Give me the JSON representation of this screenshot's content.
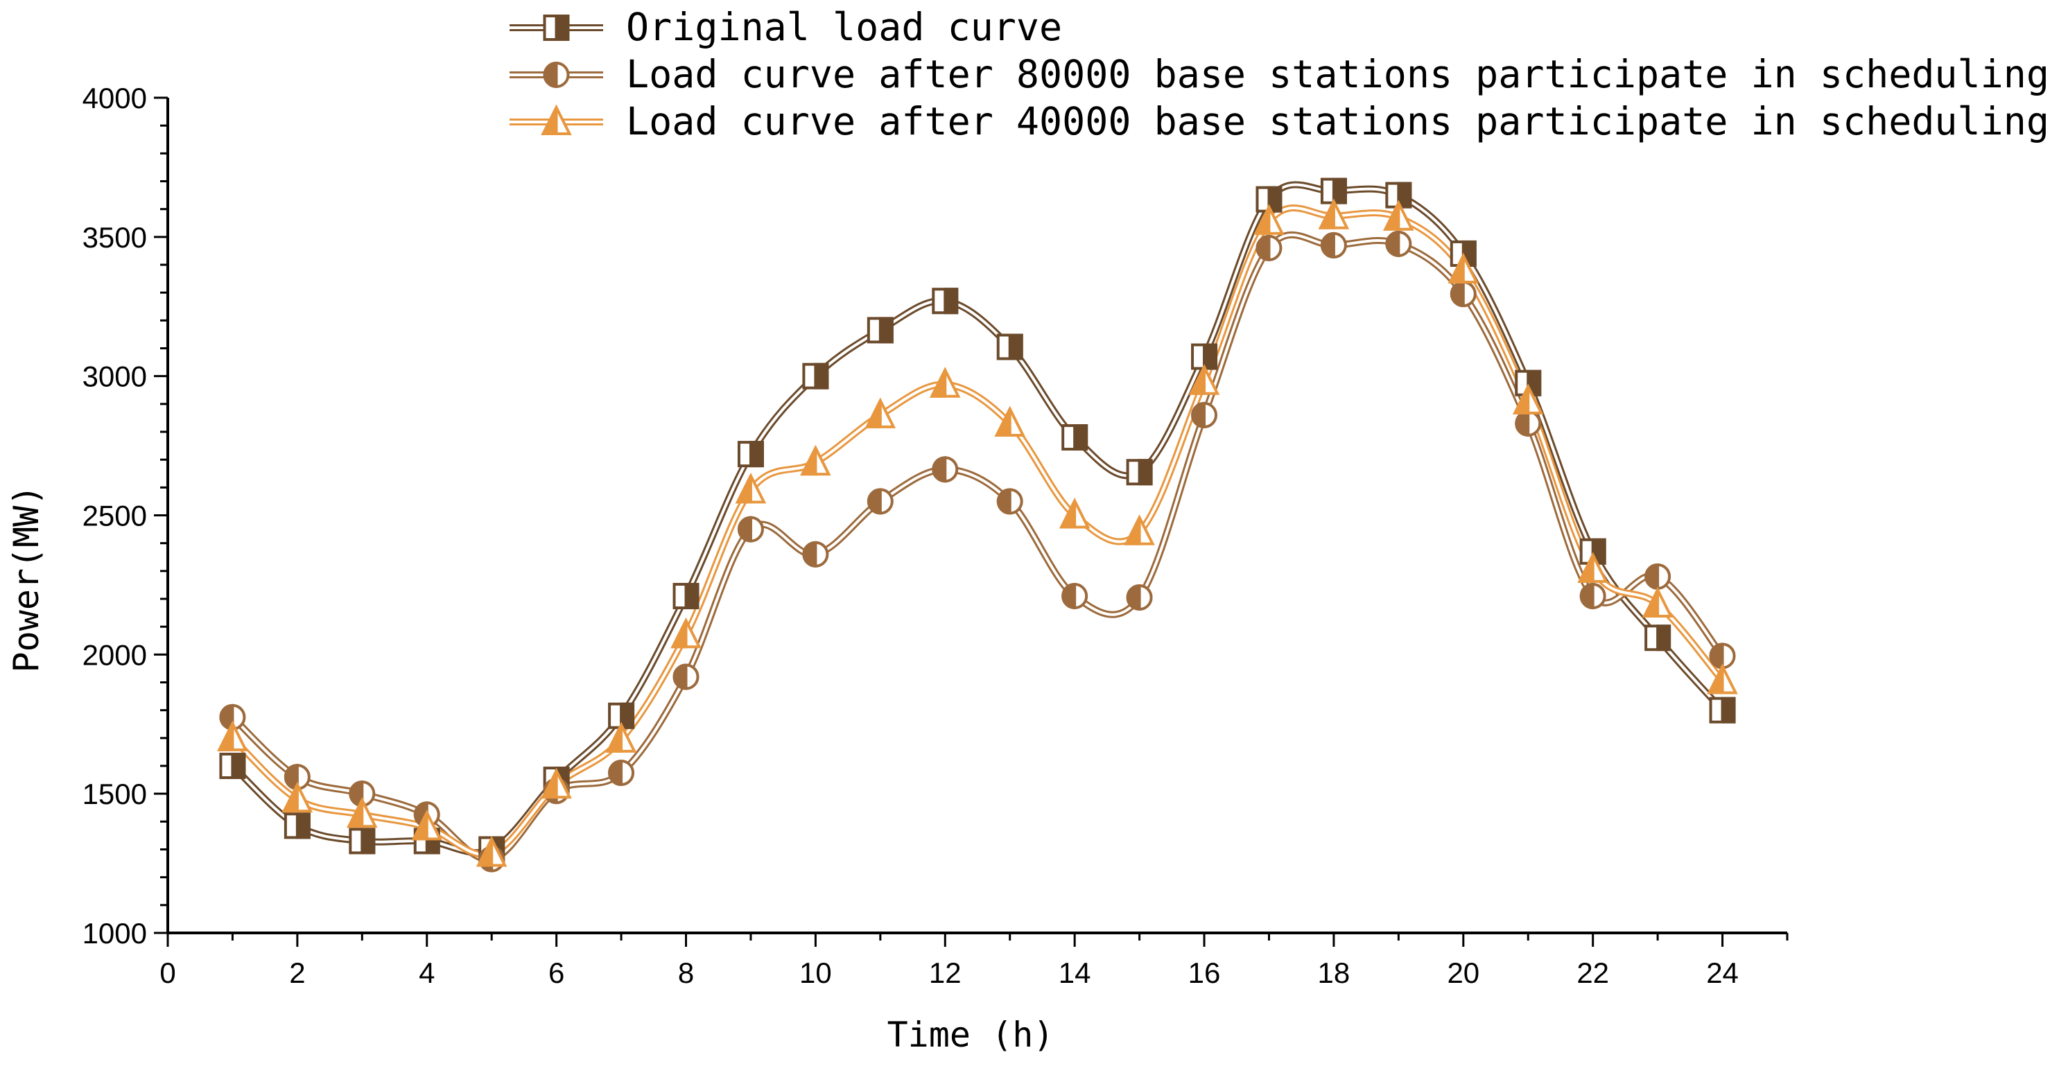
{
  "chart_data": {
    "type": "line",
    "xlabel": "Time (h)",
    "ylabel": "Power(MW)",
    "xlim": [
      0,
      25
    ],
    "ylim": [
      1000,
      4000
    ],
    "xticks": [
      0,
      2,
      4,
      6,
      8,
      10,
      12,
      14,
      16,
      18,
      20,
      22,
      24
    ],
    "yticks": [
      1000,
      1500,
      2000,
      2500,
      3000,
      3500,
      4000
    ],
    "x": [
      1,
      2,
      3,
      4,
      5,
      6,
      7,
      8,
      9,
      10,
      11,
      12,
      13,
      14,
      15,
      16,
      17,
      18,
      19,
      20,
      21,
      22,
      23,
      24
    ],
    "legend_position": "top-right",
    "series": [
      {
        "name": "Original load curve",
        "marker": "half-square",
        "color": "#6B4A2B",
        "values": [
          1600,
          1385,
          1330,
          1330,
          1300,
          1550,
          1780,
          2210,
          2720,
          3000,
          3165,
          3270,
          3105,
          2780,
          2655,
          3070,
          3635,
          3665,
          3650,
          3440,
          2975,
          2370,
          2060,
          1800
        ]
      },
      {
        "name": "Load curve after 80000 base stations participate in scheduling",
        "marker": "half-circle",
        "color": "#9C6A3C",
        "values": [
          1775,
          1560,
          1500,
          1425,
          1265,
          1510,
          1575,
          1920,
          2450,
          2360,
          2550,
          2665,
          2550,
          2210,
          2205,
          2860,
          3460,
          3470,
          3475,
          3295,
          2830,
          2210,
          2280,
          1995
        ]
      },
      {
        "name": "Load curve after 40000 base stations participate in scheduling",
        "marker": "half-triangle",
        "color": "#E8973F",
        "values": [
          1700,
          1480,
          1425,
          1380,
          1285,
          1530,
          1695,
          2070,
          2590,
          2690,
          2860,
          2970,
          2830,
          2500,
          2440,
          2980,
          3555,
          3575,
          3570,
          3380,
          2910,
          2305,
          2180,
          1905
        ]
      }
    ]
  }
}
